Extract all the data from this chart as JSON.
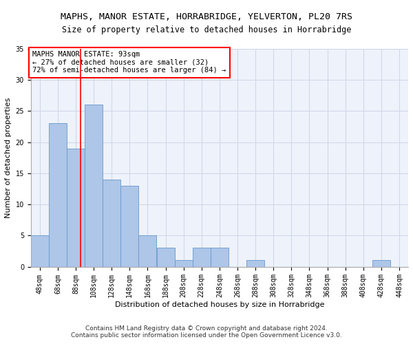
{
  "title1": "MAPHS, MANOR ESTATE, HORRABRIDGE, YELVERTON, PL20 7RS",
  "title2": "Size of property relative to detached houses in Horrabridge",
  "xlabel": "Distribution of detached houses by size in Horrabridge",
  "ylabel": "Number of detached properties",
  "footer1": "Contains HM Land Registry data © Crown copyright and database right 2024.",
  "footer2": "Contains public sector information licensed under the Open Government Licence v3.0.",
  "bin_labels": [
    "48sqm",
    "68sqm",
    "88sqm",
    "108sqm",
    "128sqm",
    "148sqm",
    "168sqm",
    "188sqm",
    "208sqm",
    "228sqm",
    "248sqm",
    "268sqm",
    "288sqm",
    "308sqm",
    "328sqm",
    "348sqm",
    "368sqm",
    "388sqm",
    "408sqm",
    "428sqm",
    "448sqm"
  ],
  "values": [
    5,
    23,
    19,
    26,
    14,
    13,
    5,
    3,
    1,
    3,
    3,
    0,
    1,
    0,
    0,
    0,
    0,
    0,
    0,
    1,
    0
  ],
  "bar_color": "#aec6e8",
  "bar_edgecolor": "#6699cc",
  "bar_width": 1.0,
  "vline_x": 93,
  "vline_color": "red",
  "annotation_text": "MAPHS MANOR ESTATE: 93sqm\n← 27% of detached houses are smaller (32)\n72% of semi-detached houses are larger (84) →",
  "annotation_box_color": "white",
  "annotation_box_edgecolor": "red",
  "ylim": [
    0,
    35
  ],
  "yticks": [
    0,
    5,
    10,
    15,
    20,
    25,
    30,
    35
  ],
  "grid_color": "#d0d8e8",
  "bg_color": "#eef2fa",
  "title_fontsize": 9.5,
  "subtitle_fontsize": 8.5,
  "axis_label_fontsize": 8,
  "tick_fontsize": 7,
  "annotation_fontsize": 7.5,
  "footer_fontsize": 6.5
}
